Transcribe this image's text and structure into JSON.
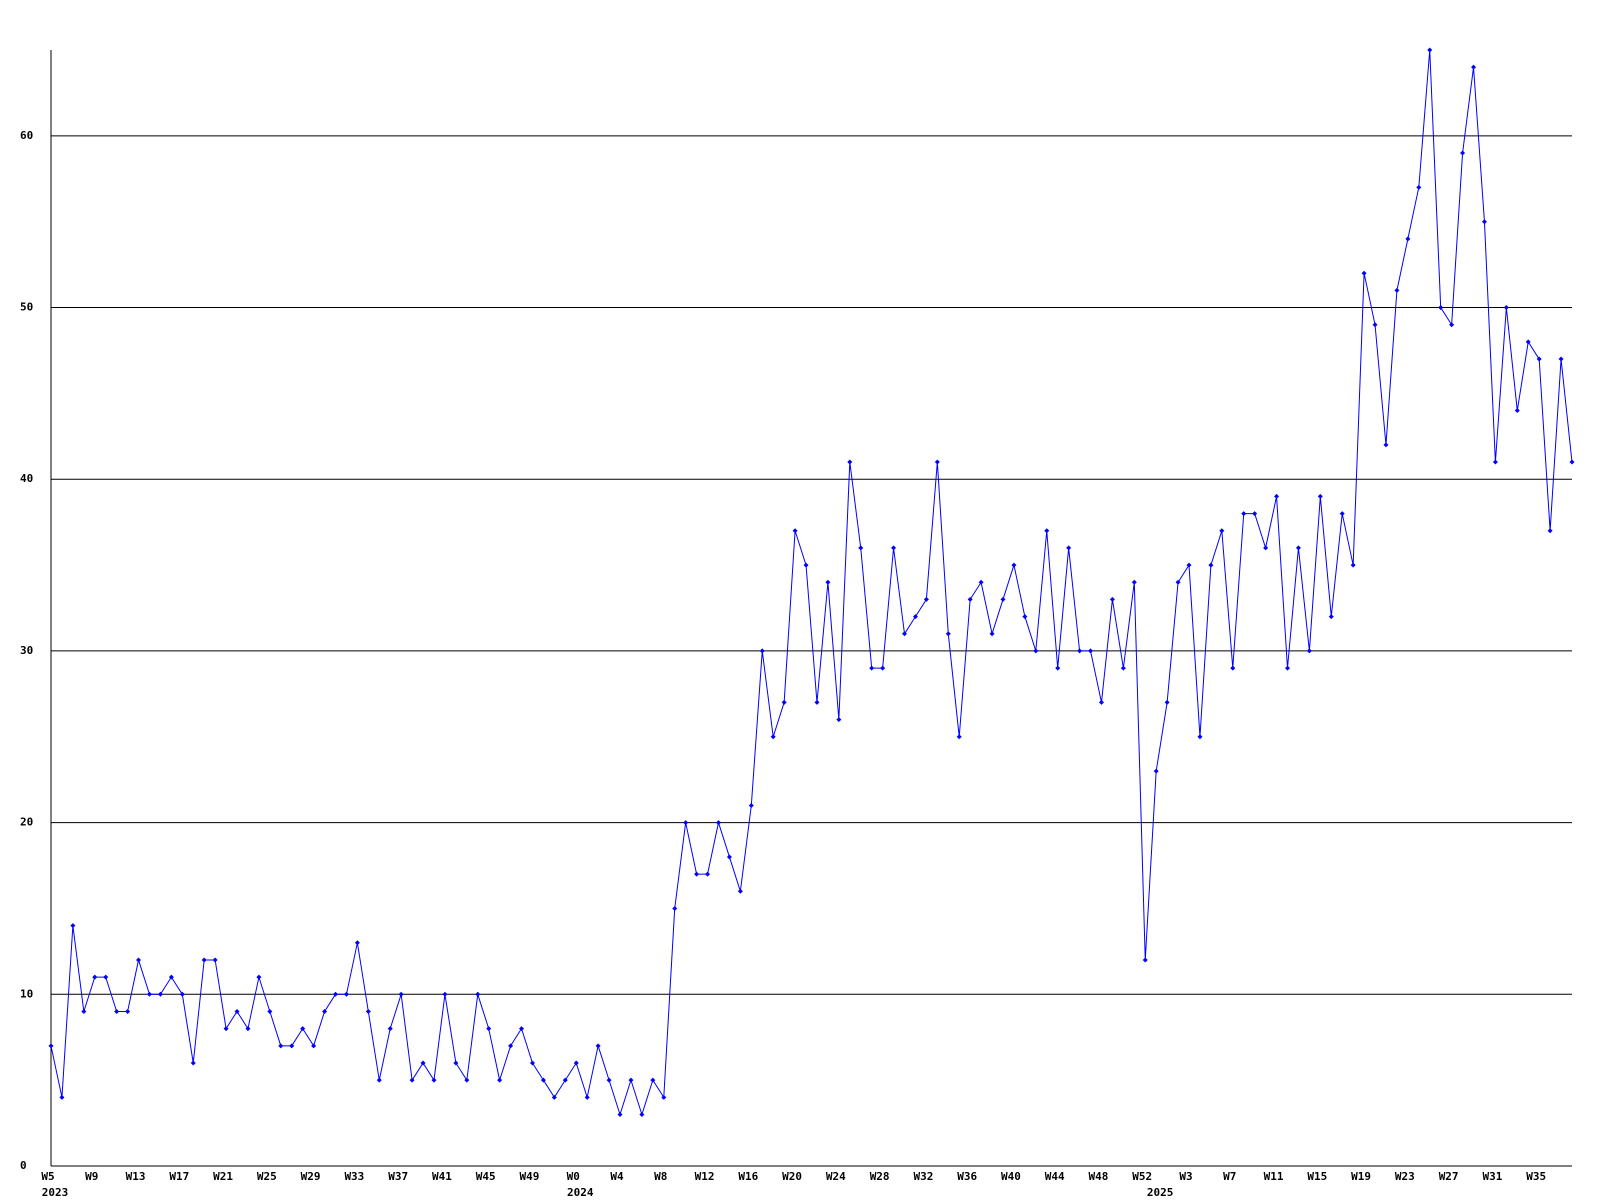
{
  "chart_data": {
    "type": "line",
    "categories": [
      "W5",
      null,
      null,
      null,
      "W9",
      null,
      null,
      null,
      "W13",
      null,
      null,
      null,
      "W17",
      null,
      null,
      null,
      "W21",
      null,
      null,
      null,
      "W25",
      null,
      null,
      null,
      "W29",
      null,
      null,
      null,
      "W33",
      null,
      null,
      null,
      "W37",
      null,
      null,
      null,
      "W41",
      null,
      null,
      null,
      "W45",
      null,
      null,
      null,
      "W49",
      null,
      null,
      null,
      "W0",
      null,
      null,
      null,
      "W4",
      null,
      null,
      null,
      "W8",
      null,
      null,
      null,
      "W12",
      null,
      null,
      null,
      "W16",
      null,
      null,
      null,
      "W20",
      null,
      null,
      null,
      "W24",
      null,
      null,
      null,
      "W28",
      null,
      null,
      null,
      "W32",
      null,
      null,
      null,
      "W36",
      null,
      null,
      null,
      "W40",
      null,
      null,
      null,
      "W44",
      null,
      null,
      null,
      "W48",
      null,
      null,
      null,
      "W52",
      null,
      null,
      null,
      "W3",
      null,
      null,
      null,
      "W7",
      null,
      null,
      null,
      "W11",
      null,
      null,
      null,
      "W15",
      null,
      null,
      null,
      "W19",
      null,
      null,
      null,
      "W23",
      null,
      null,
      null,
      "W27",
      null,
      null,
      null,
      "W31",
      null,
      null,
      null,
      "W35",
      null,
      null,
      null
    ],
    "years": [
      "2023",
      null,
      null,
      null,
      null,
      null,
      null,
      null,
      null,
      null,
      null,
      null,
      null,
      null,
      null,
      null,
      null,
      null,
      null,
      null,
      null,
      null,
      null,
      null,
      null,
      null,
      null,
      null,
      null,
      null,
      null,
      null,
      null,
      null,
      null,
      null,
      null,
      null,
      null,
      null,
      null,
      null,
      null,
      null,
      null,
      null,
      null,
      null,
      "2024",
      null,
      null,
      null,
      null,
      null,
      null,
      null,
      null,
      null,
      null,
      null,
      null,
      null,
      null,
      null,
      null,
      null,
      null,
      null,
      null,
      null,
      null,
      null,
      null,
      null,
      null,
      null,
      null,
      null,
      null,
      null,
      null,
      null,
      null,
      null,
      null,
      null,
      null,
      null,
      null,
      null,
      null,
      null,
      null,
      null,
      null,
      null,
      null,
      null,
      null,
      null,
      null,
      "2025",
      null,
      null,
      null,
      null,
      null,
      null,
      null,
      null,
      null,
      null,
      null,
      null,
      null,
      null,
      null,
      null,
      null,
      null,
      null,
      null,
      null,
      null,
      null,
      null,
      null,
      null,
      null,
      null,
      null,
      null,
      null,
      null,
      null,
      null,
      null,
      null,
      null
    ],
    "values": [
      7,
      4,
      14,
      9,
      11,
      11,
      9,
      9,
      12,
      10,
      10,
      11,
      10,
      6,
      12,
      12,
      8,
      9,
      8,
      11,
      9,
      7,
      7,
      8,
      7,
      9,
      10,
      10,
      13,
      9,
      5,
      8,
      10,
      5,
      6,
      5,
      10,
      6,
      5,
      10,
      8,
      5,
      7,
      8,
      6,
      5,
      4,
      5,
      6,
      4,
      7,
      5,
      3,
      5,
      3,
      5,
      4,
      15,
      20,
      17,
      17,
      20,
      18,
      16,
      21,
      30,
      25,
      27,
      37,
      35,
      27,
      34,
      26,
      41,
      36,
      29,
      29,
      36,
      31,
      32,
      33,
      41,
      31,
      25,
      33,
      34,
      31,
      33,
      35,
      32,
      30,
      37,
      29,
      36,
      30,
      30,
      27,
      33,
      29,
      34,
      12,
      23,
      27,
      34,
      35,
      25,
      35,
      37,
      29,
      38,
      38,
      36,
      39,
      29,
      36,
      30,
      39,
      32,
      38,
      35,
      52,
      49,
      42,
      51,
      54,
      57,
      65,
      50,
      49,
      59,
      64,
      55,
      41,
      50,
      44,
      48,
      47,
      37,
      47,
      41
    ],
    "color": "#0000ff",
    "ylim": [
      0,
      65
    ],
    "yticks": [
      0,
      10,
      20,
      30,
      40,
      50,
      60
    ],
    "grid": true
  }
}
